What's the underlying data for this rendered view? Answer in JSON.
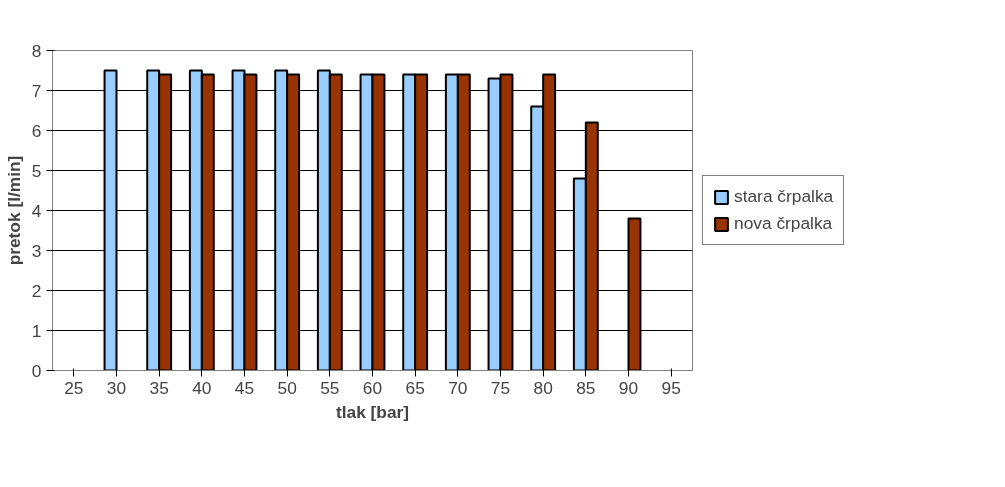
{
  "chart_data": {
    "type": "bar",
    "xlabel": "tlak [bar]",
    "ylabel": "pretok [l/min]",
    "categories": [
      "25",
      "30",
      "35",
      "40",
      "45",
      "50",
      "55",
      "60",
      "65",
      "70",
      "75",
      "80",
      "85",
      "90",
      "95"
    ],
    "series": [
      {
        "name": "stara črpalka",
        "color": "#99ccff",
        "values": [
          null,
          7.5,
          7.5,
          7.5,
          7.5,
          7.5,
          7.5,
          7.4,
          7.4,
          7.4,
          7.3,
          6.6,
          4.8,
          null,
          null
        ]
      },
      {
        "name": "nova črpalka",
        "color": "#993300",
        "values": [
          null,
          null,
          7.4,
          7.4,
          7.4,
          7.4,
          7.4,
          7.4,
          7.4,
          7.4,
          7.4,
          7.4,
          6.2,
          3.8,
          null
        ]
      }
    ],
    "ylim": [
      0,
      8
    ],
    "yticks": [
      0,
      1,
      2,
      3,
      4,
      5,
      6,
      7,
      8
    ],
    "grid": "y",
    "legend": "right"
  }
}
